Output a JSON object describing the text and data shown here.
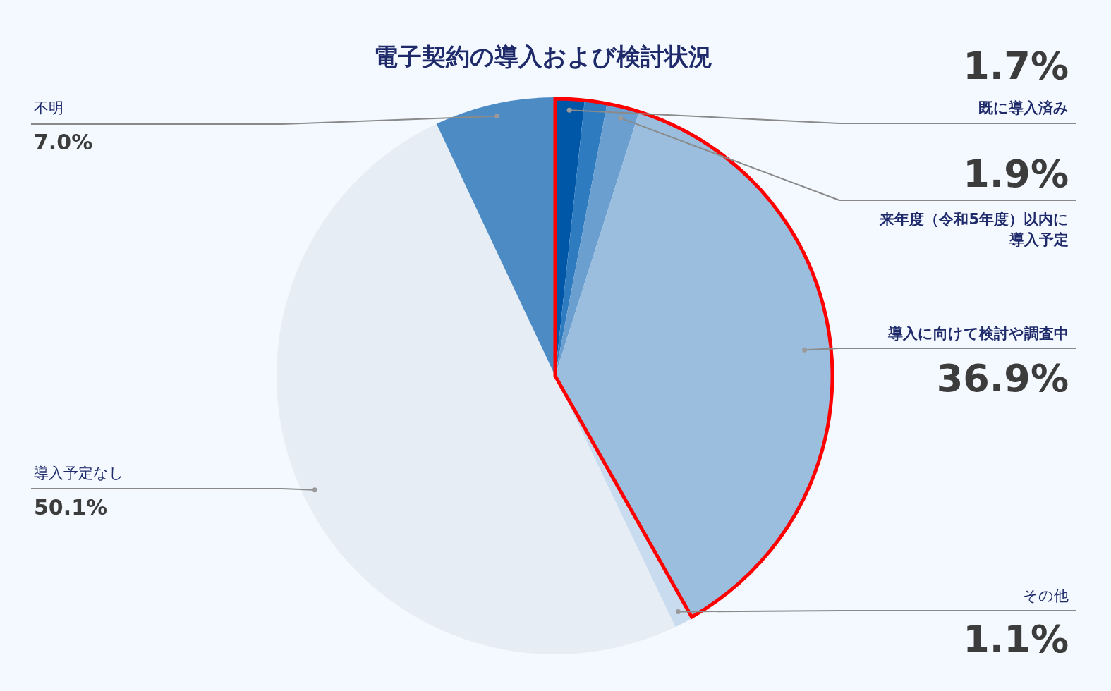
{
  "chart_data": {
    "type": "pie",
    "title": "電子契約の導入および検討状況",
    "categories": [
      "既に導入済み",
      null,
      "来年度（令和5年度）以内に導入予定",
      "導入に向けて検討や調査中",
      "その他",
      "導入予定なし",
      "不明"
    ],
    "values": [
      1.7,
      1.3,
      1.9,
      36.9,
      1.1,
      50.1,
      7.0
    ],
    "colors": [
      "#0057a8",
      "#2f7bc0",
      "#6a9fd0",
      "#9bbedf",
      "#c9dbee",
      "#e6edf5",
      "#4d8bc5"
    ],
    "value_labels": [
      "1.7%",
      null,
      "1.9%",
      "36.9%",
      "1.1%",
      "50.1%",
      "7.0%"
    ]
  }
}
